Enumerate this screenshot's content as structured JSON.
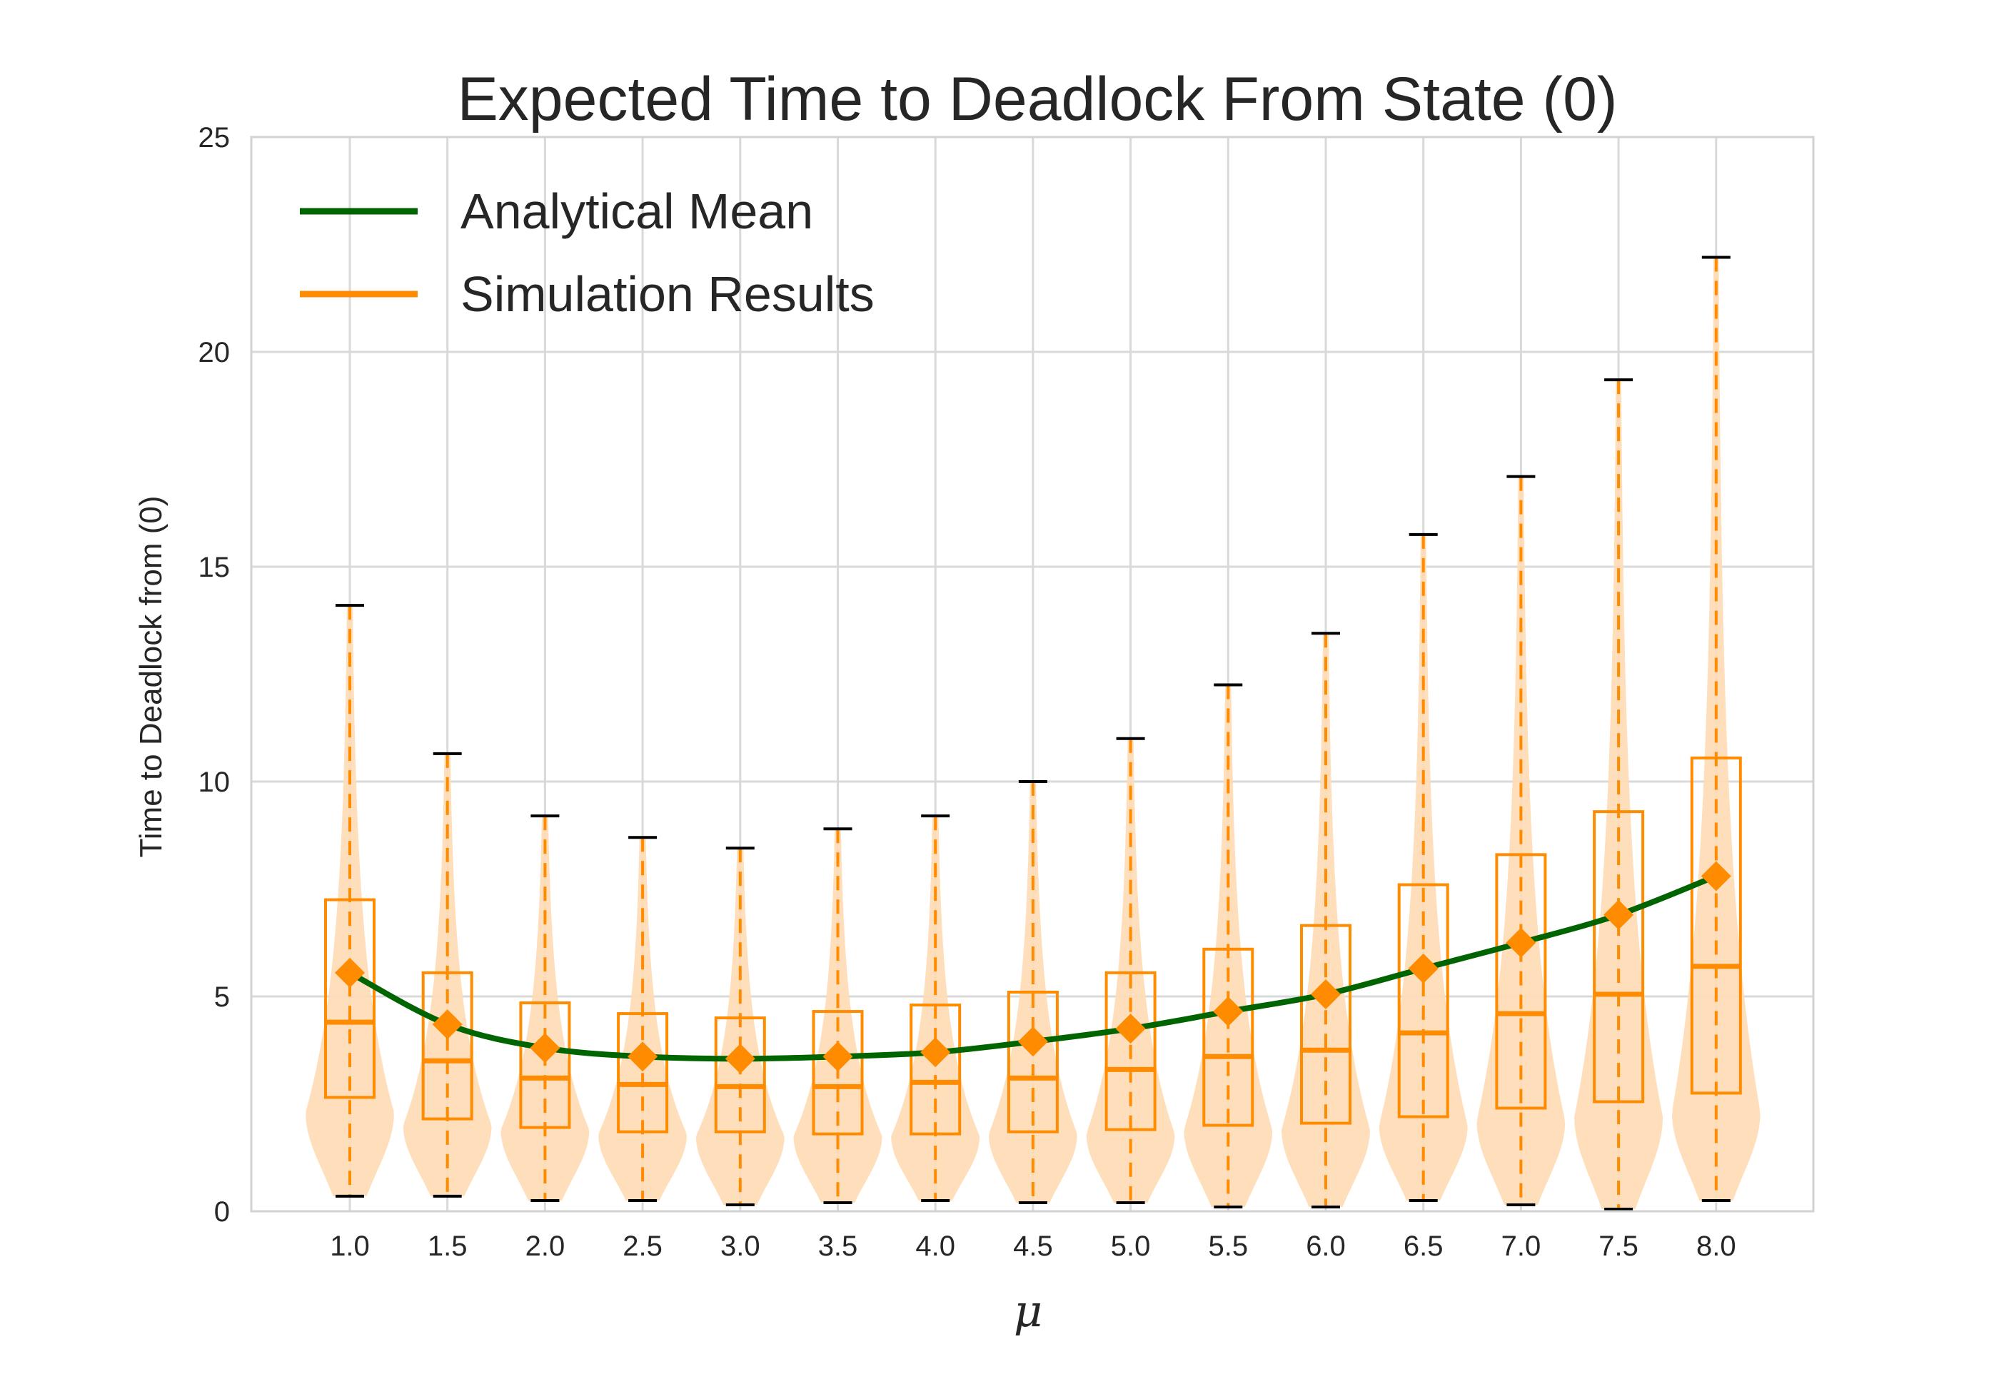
{
  "chart_data": {
    "type": "violin",
    "title": "Expected Time to Deadlock From State (0)",
    "xlabel": "μ",
    "ylabel": "Time to Deadlock from (0)",
    "categories": [
      "1.0",
      "1.5",
      "2.0",
      "2.5",
      "3.0",
      "3.5",
      "4.0",
      "4.5",
      "5.0",
      "5.5",
      "6.0",
      "6.5",
      "7.0",
      "7.5",
      "8.0"
    ],
    "x": [
      1.0,
      1.5,
      2.0,
      2.5,
      3.0,
      3.5,
      4.0,
      4.5,
      5.0,
      5.5,
      6.0,
      6.5,
      7.0,
      7.5,
      8.0
    ],
    "ylim": [
      0,
      25
    ],
    "yticks": [
      "0",
      "5",
      "10",
      "15",
      "20",
      "25"
    ],
    "grid": true,
    "legend": {
      "placement": "upper-left",
      "entries": [
        "Analytical Mean",
        "Simulation Results"
      ]
    },
    "colors": {
      "analytical": "#006400",
      "simulation": "#ff8c00",
      "violin": "#ffdcb4",
      "grid": "#d9d9d9",
      "whisker_cap": "#000000"
    },
    "series": [
      {
        "name": "Analytical Mean",
        "type": "line",
        "values": [
          5.55,
          4.35,
          3.8,
          3.6,
          3.55,
          3.6,
          3.7,
          3.95,
          4.25,
          4.65,
          5.05,
          5.65,
          6.25,
          6.9,
          7.8
        ]
      },
      {
        "name": "Simulation Results",
        "type": "violin_box",
        "means": [
          5.55,
          4.35,
          3.8,
          3.6,
          3.55,
          3.6,
          3.7,
          3.95,
          4.25,
          4.65,
          5.05,
          5.65,
          6.25,
          6.9,
          7.8
        ],
        "medians": [
          4.4,
          3.5,
          3.1,
          2.95,
          2.9,
          2.9,
          3.0,
          3.1,
          3.3,
          3.6,
          3.75,
          4.15,
          4.6,
          5.05,
          5.7
        ],
        "q1": [
          2.65,
          2.15,
          1.95,
          1.85,
          1.85,
          1.8,
          1.8,
          1.85,
          1.9,
          2.0,
          2.05,
          2.2,
          2.4,
          2.55,
          2.75
        ],
        "q3": [
          7.25,
          5.55,
          4.85,
          4.6,
          4.5,
          4.65,
          4.8,
          5.1,
          5.55,
          6.1,
          6.65,
          7.6,
          8.3,
          9.3,
          10.55
        ],
        "min": [
          0.35,
          0.35,
          0.25,
          0.25,
          0.15,
          0.2,
          0.25,
          0.2,
          0.2,
          0.1,
          0.1,
          0.25,
          0.15,
          0.05,
          0.25
        ],
        "max": [
          14.1,
          10.65,
          9.2,
          8.7,
          8.45,
          8.9,
          9.2,
          10.0,
          11.0,
          12.25,
          13.45,
          15.75,
          17.1,
          19.35,
          22.2
        ],
        "mode": [
          2.3,
          2.0,
          1.9,
          1.8,
          1.75,
          1.75,
          1.75,
          1.8,
          1.8,
          1.9,
          1.9,
          2.0,
          2.1,
          2.2,
          2.3
        ]
      }
    ]
  }
}
